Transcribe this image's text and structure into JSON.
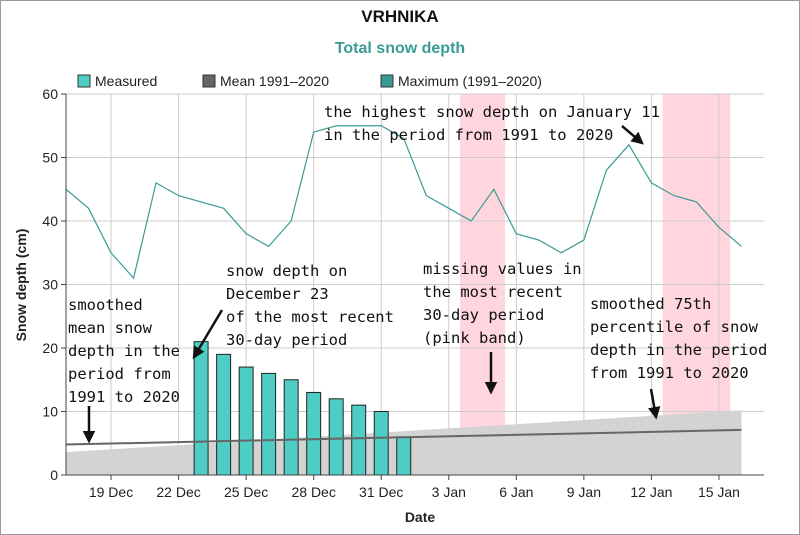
{
  "chart_data": {
    "type": "bar",
    "title": "VRHNIKA",
    "subtitle": "Total snow depth",
    "xlabel": "Date",
    "ylabel": "Snow depth (cm)",
    "ylim": [
      0,
      60
    ],
    "yticks": [
      0,
      10,
      20,
      30,
      40,
      50,
      60
    ],
    "grid": true,
    "x_range_days": [
      "2023-12-17",
      "2024-01-17"
    ],
    "xticks": [
      {
        "date": "2023-12-19",
        "label": "19 Dec"
      },
      {
        "date": "2023-12-22",
        "label": "22 Dec"
      },
      {
        "date": "2023-12-25",
        "label": "25 Dec"
      },
      {
        "date": "2023-12-28",
        "label": "28 Dec"
      },
      {
        "date": "2023-12-31",
        "label": "31 Dec"
      },
      {
        "date": "2024-01-03",
        "label": "3 Jan"
      },
      {
        "date": "2024-01-06",
        "label": "6 Jan"
      },
      {
        "date": "2024-01-09",
        "label": "9 Jan"
      },
      {
        "date": "2024-01-12",
        "label": "12 Jan"
      },
      {
        "date": "2024-01-15",
        "label": "15 Jan"
      }
    ],
    "legend": {
      "placement": "top-left",
      "items": [
        {
          "label": "Measured",
          "color": "#4ecdc4"
        },
        {
          "label": "Mean 1991–2020",
          "color": "#666666"
        },
        {
          "label": "Maximum (1991–2020)",
          "color": "#3a9b94"
        }
      ]
    },
    "series": [
      {
        "name": "Measured",
        "kind": "bar",
        "color": "#4ecdc4",
        "x": [
          "2023-12-23",
          "2023-12-24",
          "2023-12-25",
          "2023-12-26",
          "2023-12-27",
          "2023-12-28",
          "2023-12-29",
          "2023-12-30",
          "2023-12-31",
          "2024-01-01"
        ],
        "values": [
          21,
          19,
          17,
          16,
          15,
          13,
          12,
          11,
          10,
          6
        ]
      },
      {
        "name": "Mean 1991–2020",
        "kind": "line",
        "color": "#666666",
        "x": [
          "2023-12-17",
          "2024-01-16"
        ],
        "values": [
          4.8,
          7.1
        ]
      },
      {
        "name": "Maximum (1991–2020)",
        "kind": "line",
        "color": "#3a9b94",
        "x": [
          "2023-12-17",
          "2023-12-18",
          "2023-12-19",
          "2023-12-20",
          "2023-12-21",
          "2023-12-22",
          "2023-12-23",
          "2023-12-24",
          "2023-12-25",
          "2023-12-26",
          "2023-12-27",
          "2023-12-28",
          "2023-12-29",
          "2023-12-30",
          "2023-12-31",
          "2024-01-01",
          "2024-01-02",
          "2024-01-03",
          "2024-01-04",
          "2024-01-05",
          "2024-01-06",
          "2024-01-07",
          "2024-01-08",
          "2024-01-09",
          "2024-01-10",
          "2024-01-11",
          "2024-01-12",
          "2024-01-13",
          "2024-01-14",
          "2024-01-15",
          "2024-01-16"
        ],
        "values": [
          45,
          42,
          35,
          31,
          46,
          44,
          43,
          42,
          38,
          36,
          40,
          54,
          55,
          55,
          55,
          53,
          44,
          42,
          40,
          45,
          38,
          37,
          35,
          37,
          48,
          52,
          46,
          44,
          43,
          39,
          36
        ]
      },
      {
        "name": "75th percentile (1991–2020)",
        "kind": "area",
        "color": "#d3d3d3",
        "x": [
          "2023-12-17",
          "2024-01-16"
        ],
        "values": [
          3.6,
          10.2
        ]
      }
    ],
    "missing_bands": [
      {
        "from": "2024-01-03",
        "to": "2024-01-05"
      },
      {
        "from": "2024-01-12",
        "to": "2024-01-15"
      }
    ],
    "annotations": [
      {
        "lines": [
          "smoothed",
          "mean snow",
          "depth in the",
          "period from",
          "1991 to 2020"
        ]
      },
      {
        "lines": [
          "snow depth on",
          "December 23",
          "of the most recent",
          "30-day period"
        ]
      },
      {
        "lines": [
          "missing values in",
          "the most recent",
          "30-day period",
          "(pink band)"
        ]
      },
      {
        "lines": [
          "the highest snow depth on January 11",
          "in the period from 1991 to 2020"
        ]
      },
      {
        "lines": [
          "smoothed 75th",
          "percentile of snow",
          "depth in the period",
          "from 1991 to 2020"
        ]
      }
    ],
    "colors": {
      "grid": "#cccccc",
      "axis": "#444444",
      "subtitle": "#3a9b94",
      "band": "#ffd6dd",
      "percentile_fill": "#d3d3d3",
      "bar_stroke": "#222222"
    }
  }
}
